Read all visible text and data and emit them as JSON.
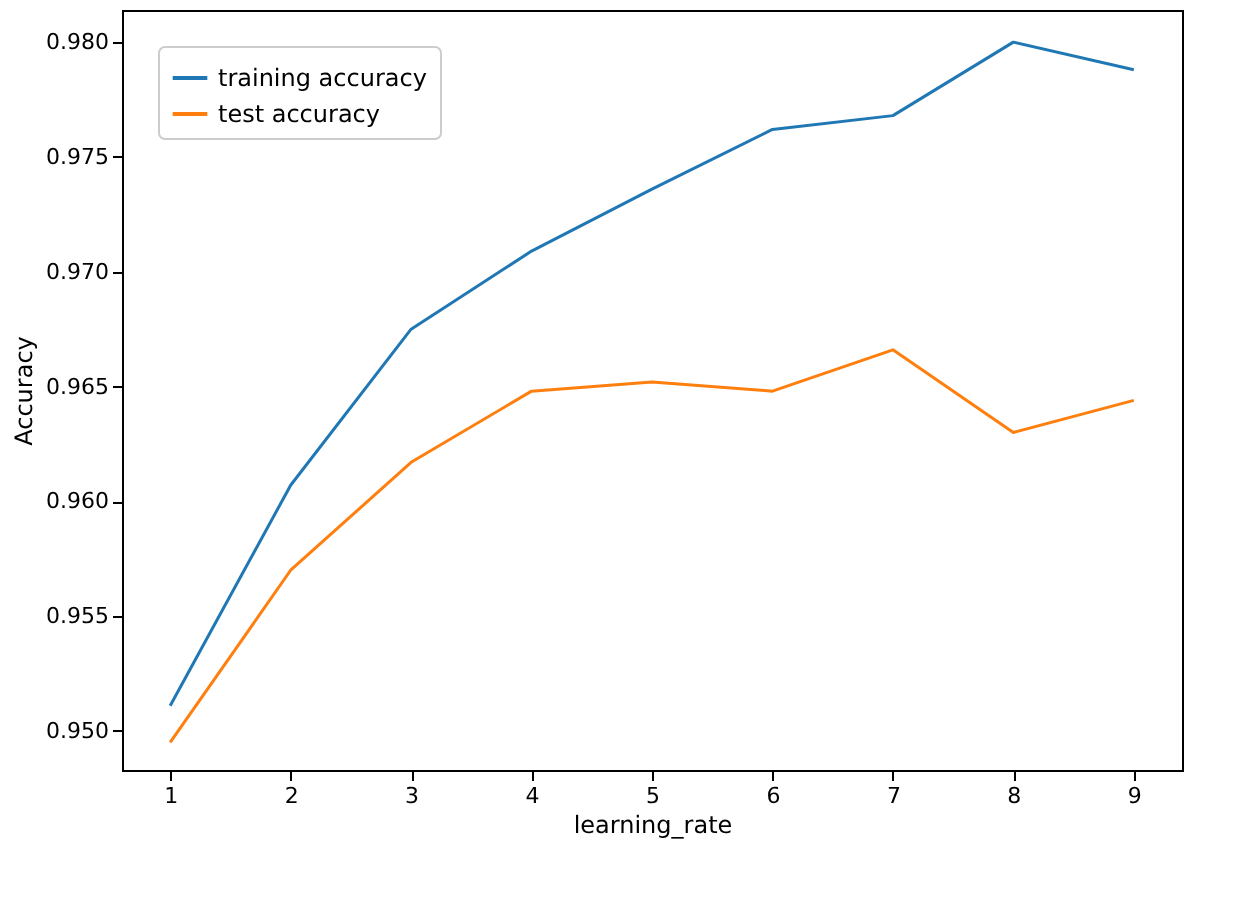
{
  "chart_data": {
    "type": "line",
    "xlabel": "learning_rate",
    "ylabel": "Accuracy",
    "x": [
      1,
      2,
      3,
      4,
      5,
      6,
      7,
      8,
      9
    ],
    "series": [
      {
        "name": "training accuracy",
        "color": "#1f77b4",
        "values": [
          0.9511,
          0.9607,
          0.9675,
          0.9709,
          0.9736,
          0.9762,
          0.9768,
          0.98,
          0.9788
        ]
      },
      {
        "name": "test accuracy",
        "color": "#ff7f0e",
        "values": [
          0.9495,
          0.957,
          0.9617,
          0.9648,
          0.9652,
          0.9648,
          0.9666,
          0.963,
          0.9644
        ]
      }
    ],
    "xlim": [
      0.6,
      9.4
    ],
    "xticks": [
      1,
      2,
      3,
      4,
      5,
      6,
      7,
      8,
      9
    ],
    "ylim": [
      0.9483,
      0.9814
    ],
    "yticks": [
      {
        "value": 0.95,
        "label": "0.950"
      },
      {
        "value": 0.955,
        "label": "0.955"
      },
      {
        "value": 0.96,
        "label": "0.960"
      },
      {
        "value": 0.965,
        "label": "0.965"
      },
      {
        "value": 0.97,
        "label": "0.970"
      },
      {
        "value": 0.975,
        "label": "0.975"
      },
      {
        "value": 0.98,
        "label": "0.980"
      }
    ],
    "legend": "top left",
    "grid": false,
    "line_style": "solid",
    "marker": "none"
  }
}
